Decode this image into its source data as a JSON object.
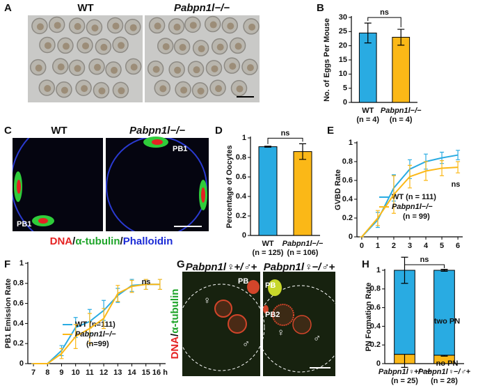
{
  "figure": {
    "panel_labels": [
      "A",
      "B",
      "C",
      "D",
      "E",
      "F",
      "G",
      "H"
    ],
    "image_a_labels": [
      "WT",
      "Pabpn1l−/−"
    ],
    "image_c_labels": [
      "WT",
      "Pabpn1l−/−"
    ],
    "image_c_marks": [
      "PB1",
      "PB1"
    ],
    "image_c_stains": [
      "DNA",
      "α-tubulin",
      "Phalloidin"
    ],
    "stain_separator": "/",
    "image_g_labels": [
      "Pabpn1l♀+/♂+",
      "Pabpn1l♀−/♂+"
    ],
    "image_g_marks": [
      "PB",
      "PB",
      "PB2"
    ],
    "female_symbol": "♀",
    "male_symbol": "♂",
    "image_g_stains": [
      "DNA",
      "α-tubulin"
    ]
  },
  "chart_data": [
    {
      "type": "bar",
      "ylabel": "No. of Eggs Per Mouse",
      "categories": [
        "WT",
        "Pabpn1l−/−"
      ],
      "category_notes": [
        "(n = 4)",
        "(n = 4)"
      ],
      "values": [
        24.5,
        23
      ],
      "errors": [
        3.5,
        2.8
      ],
      "colors": [
        "#29abe2",
        "#fbb817"
      ],
      "ylim": [
        0,
        30
      ],
      "yticks": [
        0,
        5,
        10,
        15,
        20,
        25,
        30
      ],
      "annotation": "ns"
    },
    {
      "type": "bar",
      "ylabel": "Percentage of Oocytes",
      "categories": [
        "WT",
        "Pabpn1l−/−"
      ],
      "category_notes": [
        "(n = 125)",
        "(n = 106)"
      ],
      "values": [
        0.91,
        0.86
      ],
      "errors": [
        0.005,
        0.08
      ],
      "colors": [
        "#29abe2",
        "#fbb817"
      ],
      "ylim": [
        0,
        1
      ],
      "yticks": [
        0,
        0.2,
        0.4,
        0.6,
        0.8,
        1
      ],
      "annotation": "ns"
    },
    {
      "type": "line",
      "ylabel": "GVBD Rate",
      "x": [
        0,
        1,
        2,
        3,
        4,
        5,
        6
      ],
      "xlim": [
        -0.3,
        6.3
      ],
      "xticks": [
        0,
        1,
        2,
        3,
        4,
        5,
        6
      ],
      "ylim": [
        0,
        1
      ],
      "yticks": [
        0,
        0.2,
        0.4,
        0.6,
        0.8,
        1
      ],
      "annotation": "ns",
      "series": [
        {
          "name": "WT (n = 111)",
          "color": "#29abe2",
          "values": [
            0,
            0.18,
            0.52,
            0.72,
            0.8,
            0.84,
            0.87
          ],
          "errors": [
            0,
            0.08,
            0.14,
            0.1,
            0.08,
            0.06,
            0.05
          ]
        },
        {
          "name": "Pabpn1l−/−",
          "sample_size_label": "(n = 99)",
          "color": "#fbb817",
          "values": [
            0,
            0.2,
            0.45,
            0.64,
            0.7,
            0.73,
            0.74
          ],
          "errors": [
            0,
            0.08,
            0.2,
            0.12,
            0.1,
            0.08,
            0.06
          ]
        }
      ]
    },
    {
      "type": "line",
      "ylabel": "PB1 Emission Rate",
      "x": [
        7,
        8,
        9,
        10,
        11,
        12,
        13,
        14,
        15,
        16
      ],
      "xlim": [
        6.6,
        16.4
      ],
      "xticks": [
        7,
        8,
        9,
        10,
        11,
        12,
        13,
        14,
        15,
        {
          "value": 16,
          "label": "16 h"
        }
      ],
      "ylim": [
        0,
        1
      ],
      "yticks": [
        0,
        0.2,
        0.4,
        0.6,
        0.8,
        1
      ],
      "annotation": "ns",
      "series": [
        {
          "name": "WT (n=111)",
          "color": "#29abe2",
          "values": [
            0,
            0,
            0.13,
            0.36,
            0.42,
            0.53,
            0.68,
            0.78,
            0.79,
            0.79
          ],
          "errors": [
            0,
            0,
            0.05,
            0.1,
            0.12,
            0.1,
            0.07,
            0.06,
            0.05,
            0.05
          ]
        },
        {
          "name": "Pabpn1l−/−",
          "sample_size_label": "(n=99)",
          "color": "#fbb817",
          "values": [
            0,
            0,
            0.1,
            0.27,
            0.35,
            0.45,
            0.7,
            0.77,
            0.79,
            0.79
          ],
          "errors": [
            0,
            0,
            0.05,
            0.12,
            0.15,
            0.1,
            0.08,
            0.06,
            0.05,
            0.05
          ]
        }
      ]
    },
    {
      "type": "stacked-bar",
      "ylabel": "PN Formation Rate",
      "categories": [
        "Pabpn1l♀+/♂+",
        "Pabpn1l♀−/♂+"
      ],
      "category_notes": [
        "(n = 25)",
        "(n = 28)"
      ],
      "ylim": [
        0,
        1
      ],
      "yticks": [
        0,
        0.2,
        0.4,
        0.6,
        0.8,
        1
      ],
      "annotation": "ns",
      "series": [
        {
          "name": "no PN",
          "color": "#fbb817",
          "values": [
            0.1,
            0.09
          ],
          "errors": [
            0.14,
            0.01
          ]
        },
        {
          "name": "two PN",
          "color": "#29abe2",
          "values": [
            0.9,
            0.91
          ],
          "errors": [
            0.14,
            0.01
          ]
        }
      ]
    }
  ]
}
